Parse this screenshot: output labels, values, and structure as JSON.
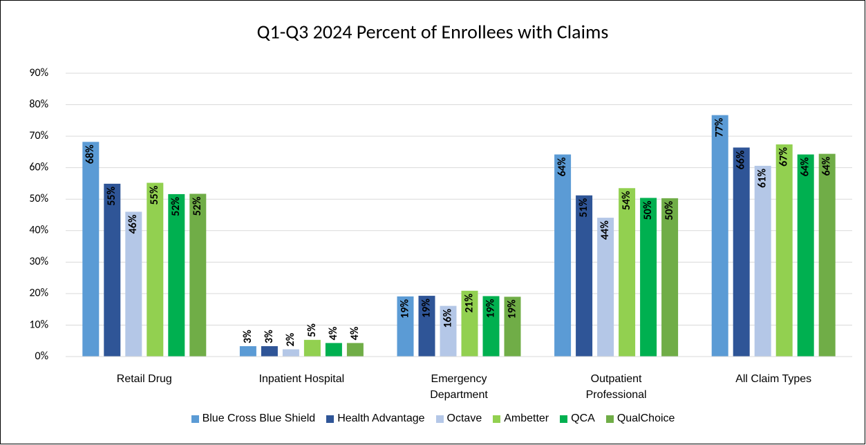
{
  "chart_data": {
    "type": "bar",
    "title": "Q1-Q3 2024 Percent of Enrollees with Claims",
    "categories": [
      "Retail Drug",
      "Inpatient Hospital",
      "Emergency\nDepartment",
      "Outpatient\nProfessional",
      "All Claim Types"
    ],
    "ylim": [
      0,
      90
    ],
    "yticks": [
      {
        "value": 0,
        "label": "0%"
      },
      {
        "value": 10,
        "label": "10%"
      },
      {
        "value": 20,
        "label": "20%"
      },
      {
        "value": 30,
        "label": "30%"
      },
      {
        "value": 40,
        "label": "40%"
      },
      {
        "value": 50,
        "label": "50%"
      },
      {
        "value": 60,
        "label": "60%"
      },
      {
        "value": 70,
        "label": "70%"
      },
      {
        "value": 80,
        "label": "80%"
      },
      {
        "value": 90,
        "label": "90%"
      }
    ],
    "grid": true,
    "legend": "bottom",
    "series": [
      {
        "name": "Blue Cross Blue Shield",
        "color": "#5b9bd5",
        "label_color": "#ffffff",
        "values": [
          68.2,
          3.3,
          19.1,
          64.2,
          76.7
        ],
        "value_labels": [
          "68%",
          "3%",
          "19%",
          "64%",
          "77%"
        ]
      },
      {
        "name": "Health Advantage",
        "color": "#2f5597",
        "label_color": "#ffffff",
        "values": [
          54.9,
          3.3,
          19.3,
          51.2,
          66.4
        ],
        "value_labels": [
          "55%",
          "3%",
          "19%",
          "51%",
          "66%"
        ]
      },
      {
        "name": "Octave",
        "color": "#b4c7e7",
        "label_color": "#000000",
        "values": [
          46.0,
          2.3,
          16.1,
          44.1,
          60.6
        ],
        "value_labels": [
          "46%",
          "2%",
          "16%",
          "44%",
          "61%"
        ]
      },
      {
        "name": "Ambetter",
        "color": "#92d050",
        "label_color": "#000000",
        "values": [
          55.2,
          5.3,
          20.9,
          53.5,
          67.4
        ],
        "value_labels": [
          "55%",
          "5%",
          "21%",
          "54%",
          "67%"
        ]
      },
      {
        "name": "QCA",
        "color": "#00b050",
        "label_color": "#ffffff",
        "values": [
          51.6,
          4.3,
          19.2,
          50.4,
          64.2
        ],
        "value_labels": [
          "52%",
          "4%",
          "19%",
          "50%",
          "64%"
        ]
      },
      {
        "name": "QualChoice",
        "color": "#70ad47",
        "label_color": "#ffffff",
        "values": [
          51.7,
          4.3,
          19.0,
          50.3,
          64.4
        ],
        "value_labels": [
          "52%",
          "4%",
          "19%",
          "50%",
          "64%"
        ]
      }
    ]
  }
}
